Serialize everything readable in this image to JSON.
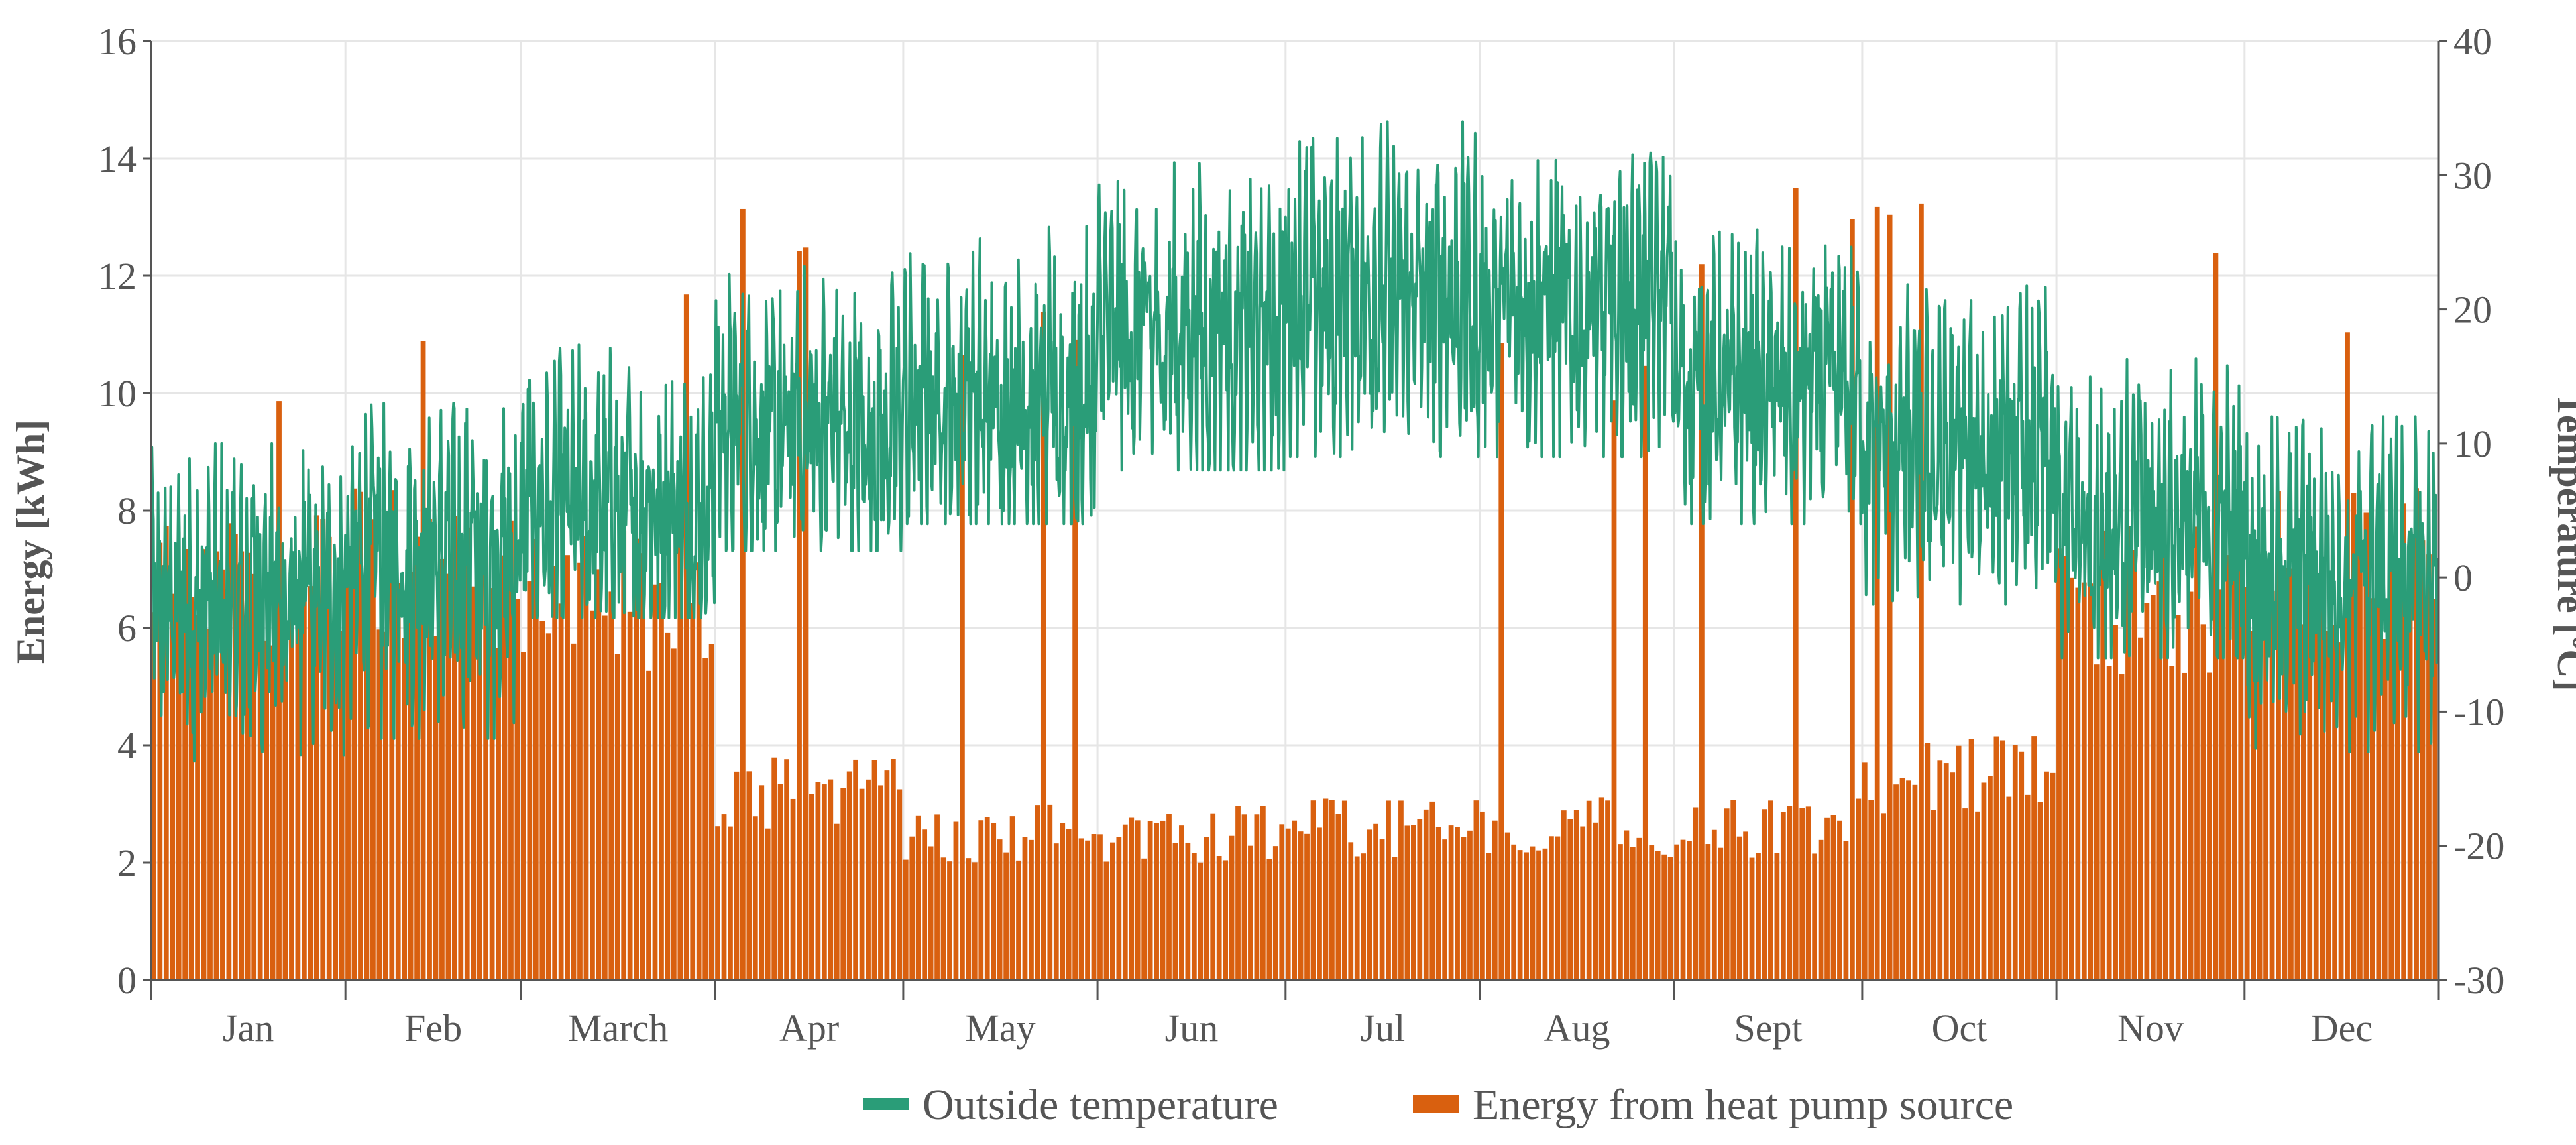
{
  "chart_data": {
    "type": "bar+line",
    "title": "",
    "xlabel": "",
    "ylabel": "Energy [kWh]",
    "y2label": "Temperature [ºC]",
    "ylim": [
      0,
      16
    ],
    "y2lim": [
      -30,
      40
    ],
    "y_ticks": [
      "0",
      "2",
      "4",
      "6",
      "8",
      "10",
      "12",
      "14",
      "16"
    ],
    "y2_ticks": [
      "-30",
      "-20",
      "-10",
      "0",
      "10",
      "20",
      "30",
      "40"
    ],
    "categories": [
      "Jan",
      "Feb",
      "March",
      "Apr",
      "May",
      "Jun",
      "Jul",
      "Aug",
      "Sept",
      "Oct",
      "Nov",
      "Dec"
    ],
    "month_days": [
      31,
      28,
      31,
      30,
      31,
      30,
      31,
      31,
      30,
      31,
      30,
      31
    ],
    "legend": {
      "position": "bottom-center",
      "temperature_label": "Outside temperature",
      "energy_label": "Energy from heat pump source"
    },
    "colors": {
      "energy": "#d9600f",
      "temperature": "#2a9d78",
      "axis": "#555555",
      "grid": "#e6e6e6"
    },
    "series": [
      {
        "name": "Energy from heat pump source",
        "axis": "left",
        "type": "bar",
        "unit": "kWh",
        "monthly_typical_daily": [
          6.8,
          7.0,
          6.5,
          3.2,
          2.5,
          2.5,
          2.6,
          2.6,
          2.6,
          3.5,
          6.5,
          7.0
        ],
        "monthly_peak_daily": [
          10.6,
          11.6,
          12.1,
          13.7,
          11.5,
          2.9,
          2.8,
          10.9,
          13.5,
          13.3,
          12.8,
          11.8
        ]
      },
      {
        "name": "Outside temperature",
        "axis": "right",
        "type": "line",
        "unit": "ºC",
        "monthly_mean": [
          -2,
          1,
          5,
          11,
          13,
          18,
          21,
          20,
          14,
          9,
          4,
          0
        ],
        "monthly_min": [
          -14,
          -12,
          -3,
          2,
          4,
          8,
          9,
          9,
          4,
          -2,
          -6,
          -13
        ],
        "monthly_max": [
          10,
          13,
          20,
          25,
          28,
          32,
          34,
          33,
          26,
          22,
          17,
          12
        ]
      }
    ]
  }
}
